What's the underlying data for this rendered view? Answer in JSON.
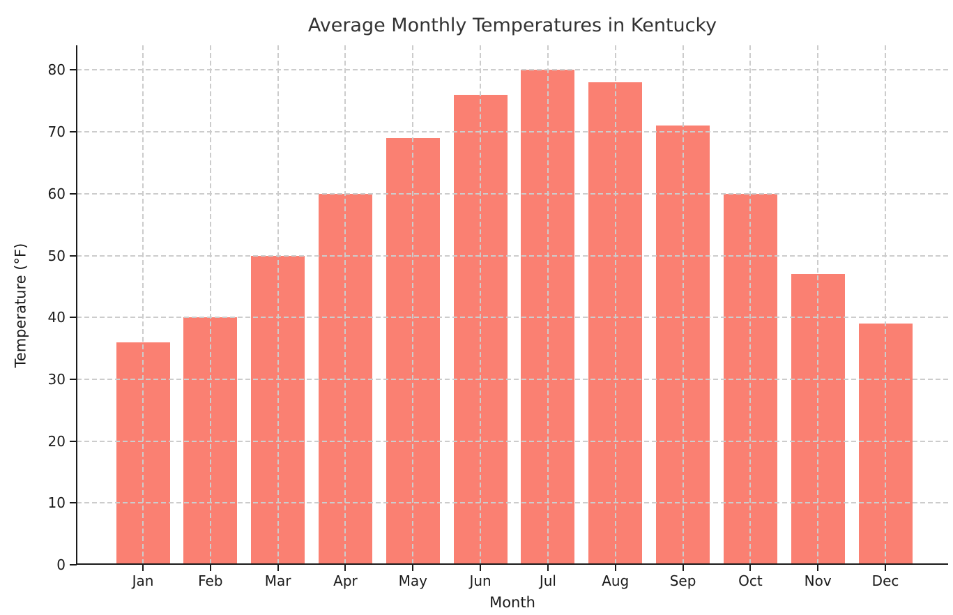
{
  "chart_data": {
    "type": "bar",
    "title": "Average Monthly Temperatures in Kentucky",
    "xlabel": "Month",
    "ylabel": "Temperature (°F)",
    "categories": [
      "Jan",
      "Feb",
      "Mar",
      "Apr",
      "May",
      "Jun",
      "Jul",
      "Aug",
      "Sep",
      "Oct",
      "Nov",
      "Dec"
    ],
    "values": [
      36,
      40,
      50,
      60,
      69,
      76,
      80,
      78,
      71,
      60,
      47,
      39
    ],
    "yticks": [
      0,
      10,
      20,
      30,
      40,
      50,
      60,
      70,
      80
    ],
    "ylim": [
      0,
      84
    ],
    "bar_color": "#FA8072",
    "grid": "dashed, both axes, drawn above bars",
    "grid_color": "#cccccc",
    "axis_color": "#1a1a1a",
    "title_color": "#333333",
    "background": "#ffffff",
    "legend_position": "none"
  }
}
